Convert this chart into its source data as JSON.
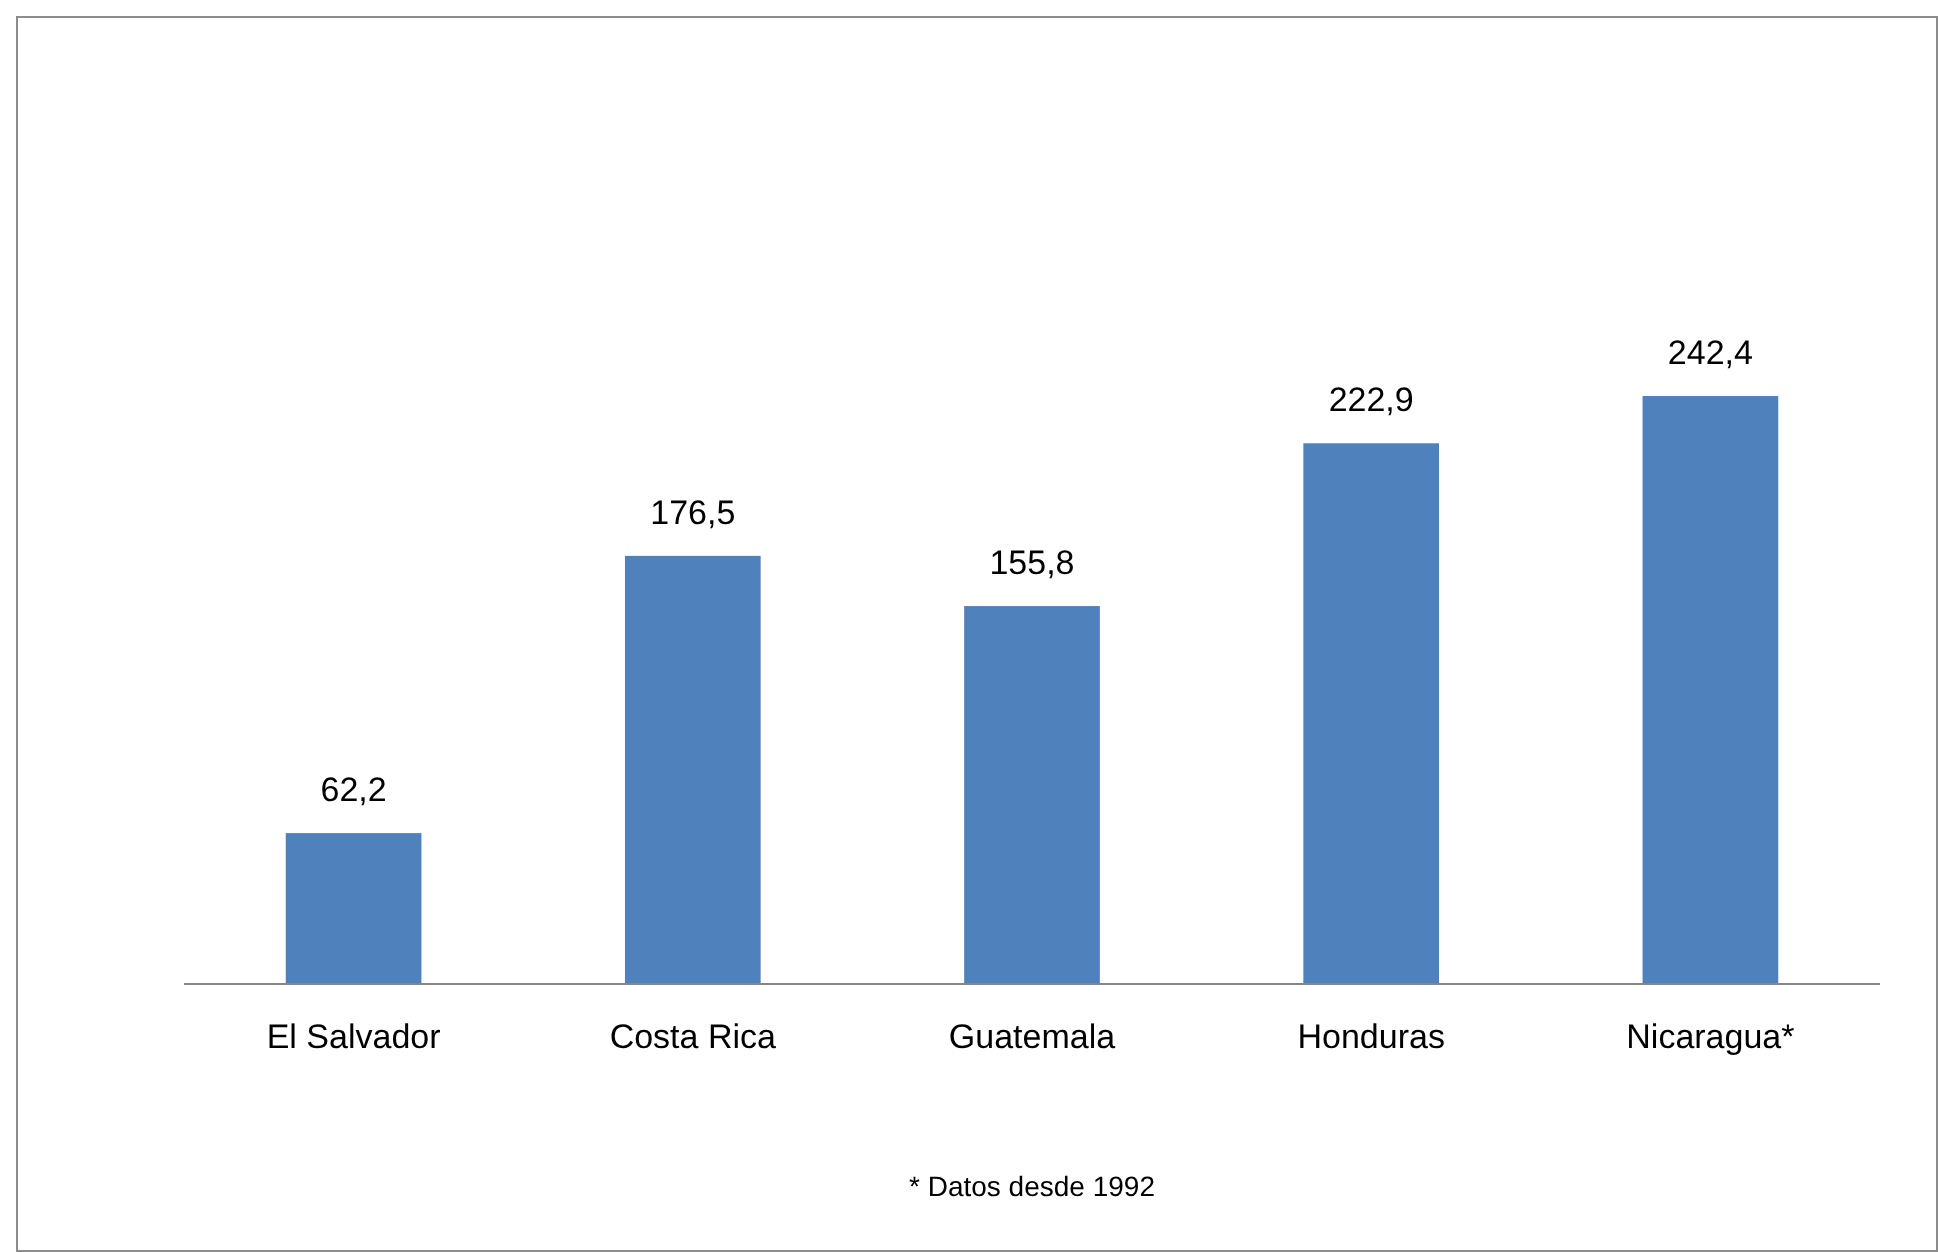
{
  "chart_data": {
    "type": "bar",
    "categories": [
      "El Salvador",
      "Costa Rica",
      "Guatemala",
      "Honduras",
      "Nicaragua*"
    ],
    "values": [
      62.2,
      176.5,
      155.8,
      222.9,
      242.4
    ],
    "value_labels": [
      "62,2",
      "176,5",
      "155,8",
      "222,9",
      "242,4"
    ],
    "color": "#4f81bd",
    "annotations": [
      "* Datos desde 1992"
    ]
  }
}
